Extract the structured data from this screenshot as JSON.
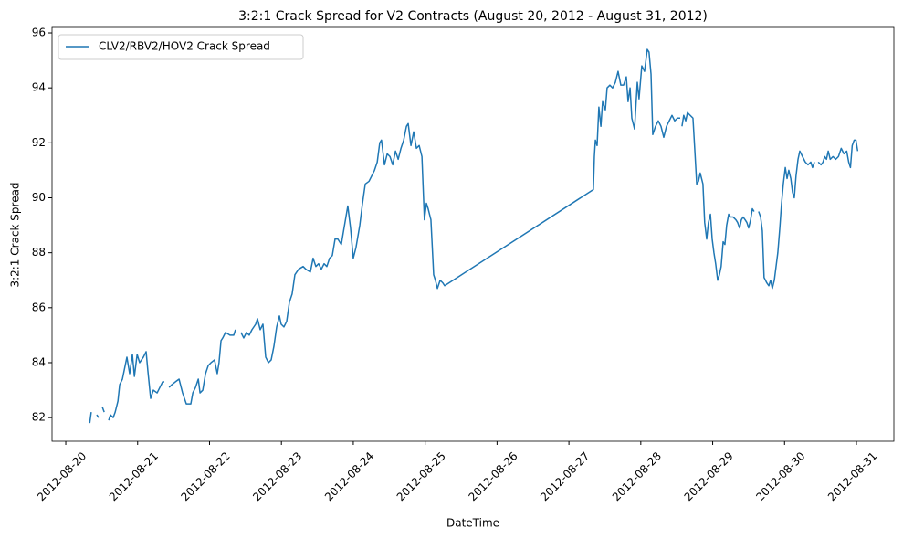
{
  "chart_data": {
    "type": "line",
    "title": "3:2:1 Crack Spread for V2 Contracts (August 20, 2012 - August 31, 2012)",
    "x_label": "DateTime",
    "y_label": "3:2:1 Crack Spread",
    "legend": "upper left",
    "grid": false,
    "xlim": [
      "2012-08-19 19:25",
      "2012-08-31 12:30"
    ],
    "xticks": [
      "2012-08-20",
      "2012-08-21",
      "2012-08-22",
      "2012-08-23",
      "2012-08-24",
      "2012-08-25",
      "2012-08-26",
      "2012-08-27",
      "2012-08-28",
      "2012-08-29",
      "2012-08-30",
      "2012-08-31"
    ],
    "ylim": [
      81.14,
      96.2
    ],
    "yticks": [
      82,
      84,
      86,
      88,
      90,
      92,
      94,
      96
    ],
    "x": [
      "2012-08-20 08:00",
      "2012-08-20 08:30",
      "2012-08-20 09:30",
      "2012-08-20 10:20",
      "2012-08-20 11:00",
      "2012-08-20 11:45",
      "2012-08-20 12:10",
      "2012-08-20 12:50",
      "2012-08-20 14:00",
      "2012-08-20 14:20",
      "2012-08-20 14:55",
      "2012-08-20 15:50",
      "2012-08-20 16:30",
      "2012-08-20 17:25",
      "2012-08-20 18:00",
      "2012-08-20 18:55",
      "2012-08-20 20:25",
      "2012-08-20 21:20",
      "2012-08-20 22:15",
      "2012-08-20 22:55",
      "2012-08-20 23:50",
      "2012-08-21 00:40",
      "2012-08-21 01:55",
      "2012-08-21 02:50",
      "2012-08-21 03:25",
      "2012-08-21 04:20",
      "2012-08-21 05:15",
      "2012-08-21 06:30",
      "2012-08-21 07:25",
      "2012-08-21 08:20",
      "2012-08-21 08:55",
      "2012-08-21 09:40",
      "2012-08-21 10:30",
      "2012-08-21 11:25",
      "2012-08-21 12:35",
      "2012-08-21 13:50",
      "2012-08-21 15:00",
      "2012-08-21 16:15",
      "2012-08-21 17:45",
      "2012-08-21 18:25",
      "2012-08-21 19:20",
      "2012-08-21 20:15",
      "2012-08-21 20:50",
      "2012-08-21 21:45",
      "2012-08-21 22:40",
      "2012-08-21 23:35",
      "2012-08-22 00:30",
      "2012-08-22 01:40",
      "2012-08-22 02:35",
      "2012-08-22 03:10",
      "2012-08-22 03:50",
      "2012-08-22 04:25",
      "2012-08-22 05:20",
      "2012-08-22 06:50",
      "2012-08-22 08:05",
      "2012-08-22 08:40",
      "2012-08-22 09:30",
      "2012-08-22 10:30",
      "2012-08-22 11:25",
      "2012-08-22 12:20",
      "2012-08-22 13:15",
      "2012-08-22 14:10",
      "2012-08-22 15:25",
      "2012-08-22 16:00",
      "2012-08-22 16:55",
      "2012-08-22 17:50",
      "2012-08-22 18:45",
      "2012-08-22 19:40",
      "2012-08-22 20:35",
      "2012-08-22 21:30",
      "2012-08-22 22:25",
      "2012-08-22 23:20",
      "2012-08-22 23:55",
      "2012-08-23 00:50",
      "2012-08-23 01:45",
      "2012-08-23 02:40",
      "2012-08-23 03:35",
      "2012-08-23 04:30",
      "2012-08-23 05:45",
      "2012-08-23 07:15",
      "2012-08-23 08:10",
      "2012-08-23 09:40",
      "2012-08-23 10:35",
      "2012-08-23 11:30",
      "2012-08-23 12:25",
      "2012-08-23 13:20",
      "2012-08-23 14:15",
      "2012-08-23 15:10",
      "2012-08-23 16:05",
      "2012-08-23 17:00",
      "2012-08-23 17:55",
      "2012-08-23 18:50",
      "2012-08-23 20:00",
      "2012-08-23 20:55",
      "2012-08-23 22:10",
      "2012-08-23 23:05",
      "2012-08-24 00:00",
      "2012-08-24 00:55",
      "2012-08-24 02:10",
      "2012-08-24 03:05",
      "2012-08-24 04:00",
      "2012-08-24 05:15",
      "2012-08-24 06:10",
      "2012-08-24 07:05",
      "2012-08-24 08:00",
      "2012-08-24 08:50",
      "2012-08-24 09:25",
      "2012-08-24 10:25",
      "2012-08-24 11:20",
      "2012-08-24 12:15",
      "2012-08-24 13:10",
      "2012-08-24 14:05",
      "2012-08-24 15:00",
      "2012-08-24 15:55",
      "2012-08-24 16:50",
      "2012-08-24 17:45",
      "2012-08-24 18:20",
      "2012-08-24 19:15",
      "2012-08-24 20:10",
      "2012-08-24 21:05",
      "2012-08-24 22:00",
      "2012-08-24 22:55",
      "2012-08-24 23:45",
      "2012-08-25 00:25",
      "2012-08-25 01:00",
      "2012-08-25 01:55",
      "2012-08-25 02:50",
      "2012-08-25 03:25",
      "2012-08-25 04:05",
      "2012-08-25 05:00",
      "2012-08-25 05:55",
      "2012-08-25 06:30",
      "2012-08-27 08:10",
      "2012-08-27 08:30",
      "2012-08-27 08:50",
      "2012-08-27 09:25",
      "2012-08-27 10:00",
      "2012-08-27 10:40",
      "2012-08-27 11:15",
      "2012-08-27 12:10",
      "2012-08-27 12:45",
      "2012-08-27 13:40",
      "2012-08-27 14:35",
      "2012-08-27 15:30",
      "2012-08-27 16:25",
      "2012-08-27 17:20",
      "2012-08-27 18:15",
      "2012-08-27 19:10",
      "2012-08-27 19:45",
      "2012-08-27 20:25",
      "2012-08-27 21:00",
      "2012-08-27 21:55",
      "2012-08-27 22:50",
      "2012-08-27 23:25",
      "2012-08-28 00:20",
      "2012-08-28 01:15",
      "2012-08-28 02:10",
      "2012-08-28 02:45",
      "2012-08-28 03:25",
      "2012-08-28 04:00",
      "2012-08-28 04:55",
      "2012-08-28 05:50",
      "2012-08-28 06:45",
      "2012-08-28 07:40",
      "2012-08-28 08:35",
      "2012-08-28 09:30",
      "2012-08-28 10:25",
      "2012-08-28 11:20",
      "2012-08-28 12:15",
      "2012-08-28 13:10",
      "2012-08-28 13:25",
      "2012-08-28 13:45",
      "2012-08-28 14:20",
      "2012-08-28 15:00",
      "2012-08-28 15:35",
      "2012-08-28 16:30",
      "2012-08-28 17:25",
      "2012-08-28 18:00",
      "2012-08-28 18:40",
      "2012-08-28 19:15",
      "2012-08-28 19:50",
      "2012-08-28 20:45",
      "2012-08-28 21:20",
      "2012-08-28 22:00",
      "2012-08-28 22:35",
      "2012-08-28 23:15",
      "2012-08-28 23:50",
      "2012-08-29 00:25",
      "2012-08-29 01:00",
      "2012-08-29 01:40",
      "2012-08-29 02:15",
      "2012-08-29 02:50",
      "2012-08-29 03:30",
      "2012-08-29 04:05",
      "2012-08-29 04:40",
      "2012-08-29 05:20",
      "2012-08-29 05:55",
      "2012-08-29 06:50",
      "2012-08-29 07:45",
      "2012-08-29 08:20",
      "2012-08-29 09:00",
      "2012-08-29 09:35",
      "2012-08-29 10:10",
      "2012-08-29 10:50",
      "2012-08-29 11:25",
      "2012-08-29 12:00",
      "2012-08-29 12:40",
      "2012-08-29 13:15",
      "2012-08-29 13:50",
      "2012-08-29 14:30",
      "2012-08-29 15:20",
      "2012-08-29 16:00",
      "2012-08-29 16:35",
      "2012-08-29 17:10",
      "2012-08-29 18:05",
      "2012-08-29 18:45",
      "2012-08-29 19:20",
      "2012-08-29 19:55",
      "2012-08-29 20:35",
      "2012-08-29 21:10",
      "2012-08-29 21:45",
      "2012-08-29 22:25",
      "2012-08-29 23:00",
      "2012-08-29 23:35",
      "2012-08-30 00:15",
      "2012-08-30 00:50",
      "2012-08-30 01:25",
      "2012-08-30 02:05",
      "2012-08-30 02:40",
      "2012-08-30 03:15",
      "2012-08-30 03:50",
      "2012-08-30 04:30",
      "2012-08-30 05:05",
      "2012-08-30 06:00",
      "2012-08-30 06:55",
      "2012-08-30 07:50",
      "2012-08-30 08:45",
      "2012-08-30 09:20",
      "2012-08-30 10:00",
      "2012-08-30 10:40",
      "2012-08-30 11:15",
      "2012-08-30 12:10",
      "2012-08-30 12:50",
      "2012-08-30 13:25",
      "2012-08-30 14:00",
      "2012-08-30 14:35",
      "2012-08-30 15:15",
      "2012-08-30 16:10",
      "2012-08-30 17:05",
      "2012-08-30 18:00",
      "2012-08-30 18:55",
      "2012-08-30 19:50",
      "2012-08-30 20:45",
      "2012-08-30 21:25",
      "2012-08-30 22:00",
      "2012-08-30 22:35",
      "2012-08-30 23:15",
      "2012-08-30 23:50",
      "2012-08-31 00:25"
    ],
    "series": [
      {
        "name": "CLV2/RBV2/HOV2 Crack Spread",
        "color": "#1f77b4",
        "values": [
          81.8,
          82.2,
          null,
          82.1,
          82.0,
          null,
          82.4,
          82.2,
          null,
          81.9,
          82.1,
          82.0,
          82.2,
          82.6,
          83.2,
          83.4,
          84.2,
          83.6,
          84.3,
          83.5,
          84.3,
          84.0,
          84.2,
          84.4,
          83.7,
          82.7,
          83.0,
          82.9,
          83.1,
          83.3,
          83.3,
          null,
          83.1,
          83.2,
          83.3,
          83.4,
          82.9,
          82.5,
          82.5,
          82.9,
          83.1,
          83.4,
          82.9,
          83.0,
          83.6,
          83.9,
          84.0,
          84.1,
          83.6,
          84.0,
          84.8,
          84.9,
          85.1,
          85.0,
          85.0,
          85.2,
          null,
          85.1,
          84.9,
          85.1,
          85.0,
          85.2,
          85.4,
          85.6,
          85.2,
          85.4,
          84.2,
          84.0,
          84.1,
          84.6,
          85.3,
          85.7,
          85.4,
          85.3,
          85.5,
          86.2,
          86.5,
          87.2,
          87.4,
          87.5,
          87.4,
          87.3,
          87.8,
          87.5,
          87.6,
          87.4,
          87.6,
          87.5,
          87.8,
          87.9,
          88.5,
          88.5,
          88.3,
          88.9,
          89.7,
          88.9,
          87.8,
          88.2,
          89.0,
          89.8,
          90.5,
          90.6,
          90.8,
          91.0,
          91.3,
          92.0,
          92.1,
          91.2,
          91.6,
          91.5,
          91.2,
          91.7,
          91.4,
          91.8,
          92.1,
          92.6,
          92.7,
          91.9,
          92.4,
          91.8,
          91.9,
          91.5,
          89.2,
          89.8,
          89.6,
          89.2,
          87.2,
          87.0,
          86.7,
          87.0,
          86.9,
          86.8,
          90.3,
          91.5,
          92.1,
          91.9,
          93.3,
          92.6,
          93.5,
          93.2,
          94.0,
          94.1,
          94.0,
          94.2,
          94.6,
          94.1,
          94.1,
          94.4,
          93.5,
          94.0,
          92.9,
          92.5,
          94.2,
          93.6,
          94.8,
          94.6,
          95.4,
          95.3,
          94.5,
          92.3,
          92.6,
          92.8,
          92.6,
          92.2,
          92.6,
          92.8,
          93.0,
          92.8,
          92.9,
          92.9,
          null,
          92.6,
          93.0,
          92.8,
          93.1,
          93.0,
          92.9,
          91.8,
          90.5,
          90.6,
          90.9,
          90.5,
          89.1,
          88.5,
          89.1,
          89.4,
          88.5,
          88.0,
          87.6,
          87.0,
          87.2,
          87.5,
          88.4,
          88.3,
          89.0,
          89.4,
          89.3,
          89.3,
          89.2,
          89.1,
          88.9,
          89.2,
          89.3,
          89.2,
          89.1,
          88.9,
          89.2,
          89.6,
          89.5,
          null,
          89.5,
          89.3,
          88.8,
          87.1,
          86.9,
          86.8,
          87.0,
          86.7,
          87.0,
          87.5,
          88.0,
          88.9,
          89.8,
          90.5,
          91.1,
          90.7,
          91.0,
          90.7,
          90.2,
          90.0,
          90.8,
          91.4,
          91.7,
          91.5,
          91.3,
          91.2,
          91.3,
          91.1,
          91.3,
          null,
          91.3,
          91.2,
          91.3,
          91.5,
          91.4,
          91.7,
          91.4,
          91.5,
          91.4,
          91.5,
          91.8,
          91.6,
          91.7,
          91.3,
          91.1,
          91.9,
          92.1,
          92.1,
          91.7
        ]
      }
    ]
  }
}
